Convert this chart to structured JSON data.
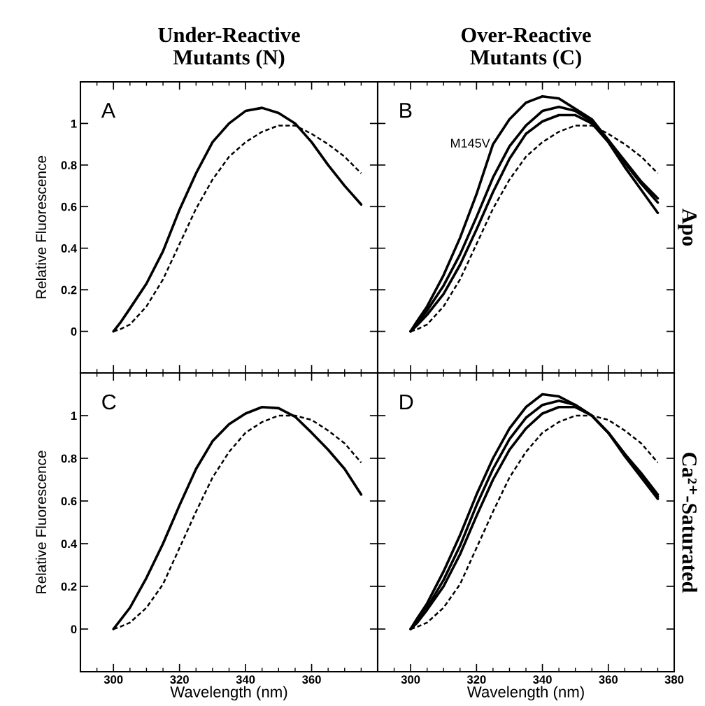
{
  "chart_data": [
    {
      "type": "line",
      "title": "Under-Reactive\nMutants (N)",
      "ylabel": "Relative Fluorescence",
      "annotations": [
        "A"
      ],
      "xlim": [
        290,
        380
      ],
      "ylim": [
        -0.2,
        1.2
      ],
      "xticks": [
        {
          "value": 300,
          "label": null
        },
        {
          "value": 320,
          "label": null
        },
        {
          "value": 340,
          "label": null
        },
        {
          "value": 360,
          "label": null
        },
        {
          "value": 380,
          "label": null
        }
      ],
      "yticks": [
        0,
        0.2,
        0.4,
        0.6,
        0.8,
        1
      ],
      "tick_labels": "y",
      "grid": false,
      "legend": false,
      "x": [
        300,
        302,
        305,
        310,
        315,
        320,
        325,
        330,
        335,
        340,
        345,
        350,
        355,
        360,
        365,
        370,
        375
      ],
      "series": [
        {
          "color": "#000000",
          "line_style": "solid",
          "values": [
            0,
            0.04,
            0.11,
            0.23,
            0.385,
            0.585,
            0.76,
            0.91,
            1.0,
            1.06,
            1.075,
            1.05,
            1.0,
            0.91,
            0.8,
            0.7,
            0.61
          ]
        },
        {
          "color": "#000000",
          "line_style": "dashed",
          "values": [
            0,
            0.01,
            0.033,
            0.12,
            0.25,
            0.42,
            0.59,
            0.73,
            0.84,
            0.91,
            0.96,
            0.99,
            0.99,
            0.95,
            0.9,
            0.84,
            0.76
          ]
        }
      ]
    },
    {
      "type": "line",
      "title": "Over-Reactive\nMutants (C)",
      "y2label": "Apo",
      "annotations": [
        "B",
        {
          "text": "M145V",
          "x": 325,
          "y": 0.9
        }
      ],
      "xlim": [
        290,
        380
      ],
      "ylim": [
        -0.2,
        1.2
      ],
      "xticks": [
        {
          "value": 300,
          "label": null
        },
        {
          "value": 320,
          "label": null
        },
        {
          "value": 340,
          "label": null
        },
        {
          "value": 360,
          "label": null
        },
        {
          "value": 380,
          "label": null
        }
      ],
      "yticks": [
        {
          "value": 0,
          "label": null
        },
        {
          "value": 0.2,
          "label": null
        },
        {
          "value": 0.4,
          "label": null
        },
        {
          "value": 0.6,
          "label": null
        },
        {
          "value": 0.8,
          "label": null
        },
        {
          "value": 1,
          "label": null
        }
      ],
      "tick_labels": false,
      "grid": false,
      "legend": false,
      "x": [
        300,
        302,
        305,
        310,
        315,
        320,
        325,
        330,
        335,
        340,
        345,
        350,
        355,
        360,
        365,
        370,
        375
      ],
      "series": [
        {
          "color": "#000000",
          "line_style": "solid",
          "values": [
            0,
            0.05,
            0.12,
            0.27,
            0.45,
            0.66,
            0.9,
            1.02,
            1.1,
            1.13,
            1.12,
            1.07,
            1.02,
            0.92,
            0.82,
            0.72,
            0.64
          ]
        },
        {
          "color": "#000000",
          "line_style": "solid",
          "values": [
            0,
            0.04,
            0.1,
            0.22,
            0.37,
            0.55,
            0.74,
            0.89,
            0.99,
            1.06,
            1.08,
            1.06,
            1.01,
            0.92,
            0.81,
            0.71,
            0.62
          ]
        },
        {
          "color": "#000000",
          "line_style": "solid",
          "values": [
            0,
            0.03,
            0.08,
            0.18,
            0.32,
            0.49,
            0.67,
            0.83,
            0.95,
            1.01,
            1.04,
            1.04,
            1.0,
            0.91,
            0.79,
            0.68,
            0.57
          ]
        },
        {
          "color": "#000000",
          "line_style": "dashed",
          "values": [
            0,
            0.01,
            0.033,
            0.12,
            0.25,
            0.42,
            0.59,
            0.73,
            0.84,
            0.91,
            0.96,
            0.99,
            0.99,
            0.95,
            0.9,
            0.84,
            0.76
          ]
        }
      ]
    },
    {
      "type": "line",
      "xlabel": "Wavelength (nm)",
      "ylabel": "Relative Fluorescence",
      "annotations": [
        "C"
      ],
      "xlim": [
        290,
        380
      ],
      "ylim": [
        -0.2,
        1.2
      ],
      "xticks": [
        300,
        320,
        340,
        360,
        {
          "value": 380,
          "label": null
        }
      ],
      "yticks": [
        0,
        0.2,
        0.4,
        0.6,
        0.8,
        1
      ],
      "grid": false,
      "legend": false,
      "x": [
        300,
        302,
        305,
        310,
        315,
        320,
        325,
        330,
        335,
        340,
        345,
        350,
        355,
        360,
        365,
        370,
        375
      ],
      "series": [
        {
          "color": "#000000",
          "line_style": "solid",
          "values": [
            0,
            0.04,
            0.1,
            0.24,
            0.4,
            0.58,
            0.75,
            0.88,
            0.96,
            1.01,
            1.04,
            1.035,
            0.995,
            0.92,
            0.84,
            0.75,
            0.63
          ]
        },
        {
          "color": "#000000",
          "line_style": "dashed",
          "values": [
            0,
            0.01,
            0.03,
            0.1,
            0.21,
            0.38,
            0.55,
            0.71,
            0.83,
            0.92,
            0.97,
            1.0,
            1.0,
            0.98,
            0.93,
            0.87,
            0.78
          ]
        }
      ]
    },
    {
      "type": "line",
      "xlabel": "Wavelength (nm)",
      "y2label": "Ca²⁺-Saturated",
      "annotations": [
        "D"
      ],
      "xlim": [
        290,
        380
      ],
      "ylim": [
        -0.2,
        1.2
      ],
      "xticks": [
        300,
        320,
        340,
        360,
        380
      ],
      "yticks": [
        {
          "value": 0,
          "label": null
        },
        {
          "value": 0.2,
          "label": null
        },
        {
          "value": 0.4,
          "label": null
        },
        {
          "value": 0.6,
          "label": null
        },
        {
          "value": 0.8,
          "label": null
        },
        {
          "value": 1,
          "label": null
        }
      ],
      "tick_labels": "x",
      "grid": false,
      "legend": false,
      "x": [
        300,
        302,
        305,
        310,
        315,
        320,
        325,
        330,
        335,
        340,
        345,
        350,
        355,
        360,
        365,
        370,
        375
      ],
      "series": [
        {
          "color": "#000000",
          "line_style": "solid",
          "values": [
            0,
            0.05,
            0.12,
            0.27,
            0.44,
            0.63,
            0.8,
            0.94,
            1.04,
            1.1,
            1.09,
            1.05,
            1.0,
            0.92,
            0.82,
            0.73,
            0.63
          ]
        },
        {
          "color": "#000000",
          "line_style": "solid",
          "values": [
            0,
            0.04,
            0.1,
            0.23,
            0.39,
            0.58,
            0.75,
            0.89,
            0.99,
            1.05,
            1.07,
            1.05,
            1.0,
            0.92,
            0.82,
            0.72,
            0.62
          ]
        },
        {
          "color": "#000000",
          "line_style": "solid",
          "values": [
            0,
            0.03,
            0.09,
            0.2,
            0.35,
            0.53,
            0.7,
            0.84,
            0.94,
            1.01,
            1.04,
            1.04,
            1.0,
            0.92,
            0.81,
            0.71,
            0.61
          ]
        },
        {
          "color": "#000000",
          "line_style": "dashed",
          "values": [
            0,
            0.01,
            0.03,
            0.1,
            0.21,
            0.38,
            0.55,
            0.71,
            0.83,
            0.92,
            0.97,
            1.0,
            1.0,
            0.98,
            0.93,
            0.87,
            0.78
          ]
        }
      ]
    }
  ]
}
